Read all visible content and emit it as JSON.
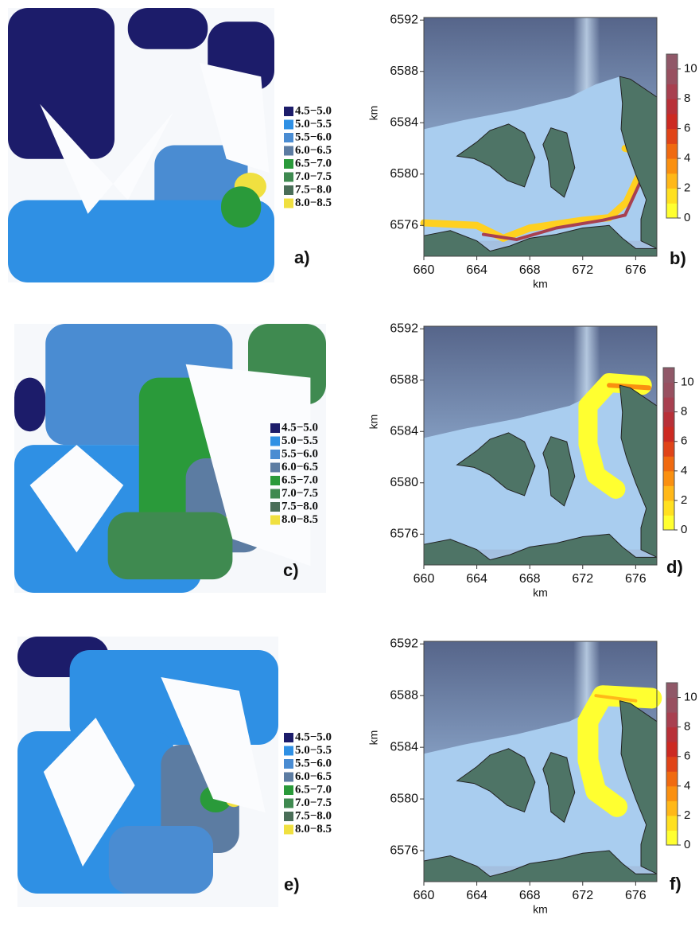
{
  "legend": [
    {
      "label": "4.5−5.0",
      "color": "#1c1c6a"
    },
    {
      "label": "5.0−5.5",
      "color": "#2f90e4"
    },
    {
      "label": "5.5−6.0",
      "color": "#4a8cd2"
    },
    {
      "label": "6.0−6.5",
      "color": "#5c7ca2"
    },
    {
      "label": "6.5−7.0",
      "color": "#2a9a3a"
    },
    {
      "label": "7.0−7.5",
      "color": "#3f8a50"
    },
    {
      "label": "7.5−8.0",
      "color": "#4a6e58"
    },
    {
      "label": "8.0−8.5",
      "color": "#f0e040"
    }
  ],
  "map": {
    "xlabel": "km",
    "ylabel": "km",
    "xlim": [
      660,
      677.6
    ],
    "ylim": [
      6573.6,
      6592.2
    ],
    "xticks": [
      660,
      664,
      668,
      672,
      676
    ],
    "yticks": [
      6576,
      6580,
      6584,
      6588,
      6592
    ],
    "colorbar": {
      "lim": [
        0,
        11
      ],
      "ticks": [
        0,
        2,
        4,
        6,
        8,
        10
      ],
      "colors": [
        "#ffff30",
        "#ffe020",
        "#ffb818",
        "#fa9010",
        "#f06a10",
        "#e04418",
        "#cc2a22",
        "#b83038",
        "#a84050",
        "#985060",
        "#905868"
      ]
    }
  },
  "panels": [
    {
      "label": "a)"
    },
    {
      "label": "b)"
    },
    {
      "label": "c)"
    },
    {
      "label": "d)"
    },
    {
      "label": "e)"
    },
    {
      "label": "f)"
    }
  ]
}
